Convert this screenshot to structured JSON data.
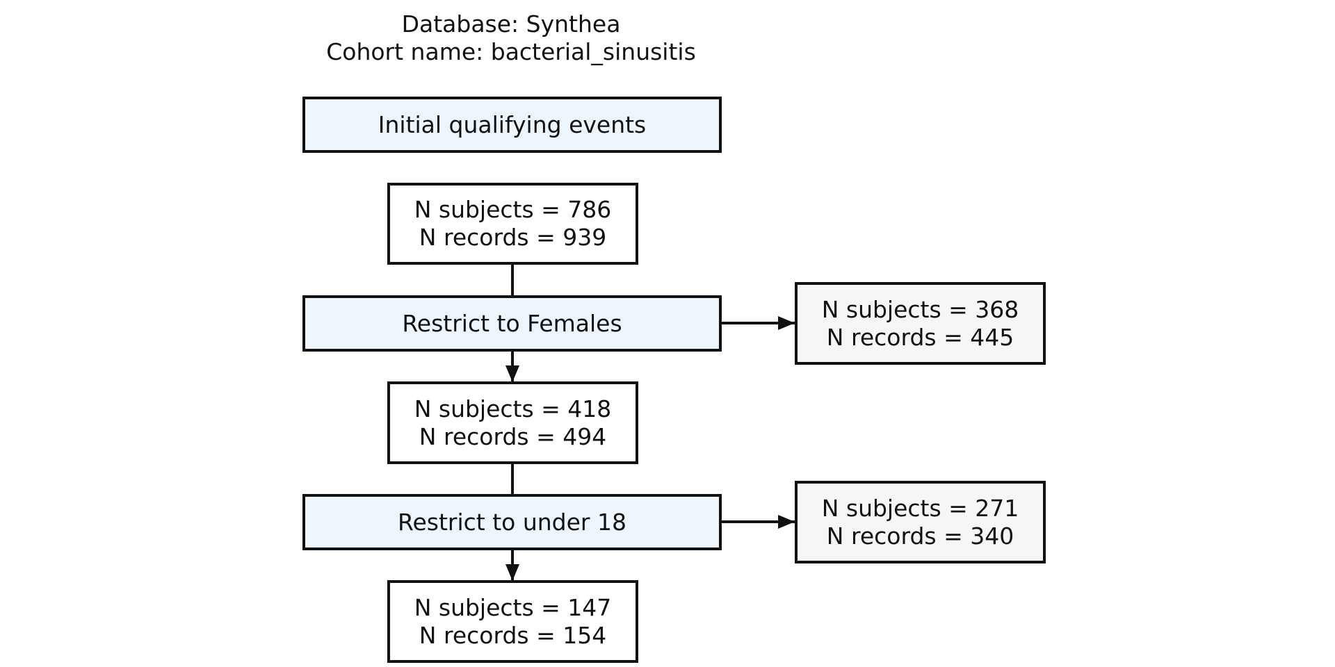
{
  "header": {
    "database_line": "Database: Synthea",
    "cohort_line": "Cohort name: bacterial_sinusitis"
  },
  "flow": {
    "initial_label": "Initial qualifying events",
    "initial_counts": {
      "subjects": "N subjects = 786",
      "records": "N records = 939"
    },
    "steps": [
      {
        "label": "Restrict to Females",
        "excluded": {
          "subjects": "N subjects = 368",
          "records": "N records = 445"
        },
        "remaining": {
          "subjects": "N subjects = 418",
          "records": "N records = 494"
        }
      },
      {
        "label": "Restrict to under 18",
        "excluded": {
          "subjects": "N subjects = 271",
          "records": "N records = 340"
        },
        "remaining": {
          "subjects": "N subjects = 147",
          "records": "N records = 154"
        }
      }
    ]
  },
  "colors": {
    "step_fill": "#eef6fd",
    "count_fill": "#ffffff",
    "excluded_fill": "#f6f6f6",
    "stroke": "#111111"
  }
}
